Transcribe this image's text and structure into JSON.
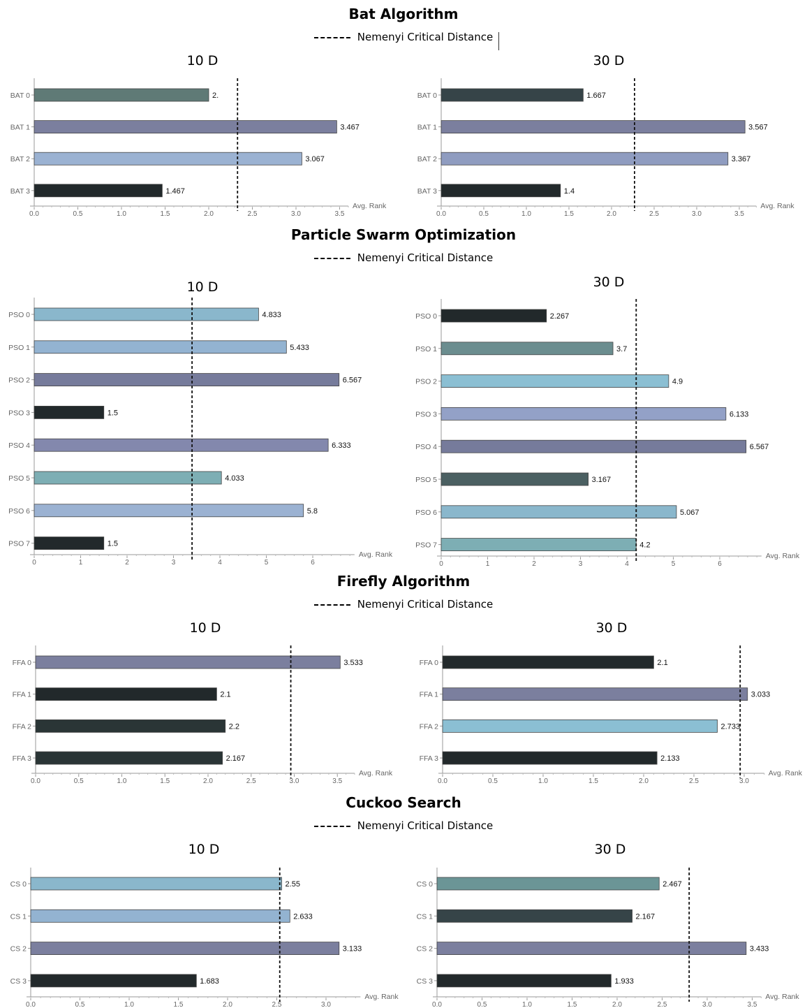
{
  "legend_label": "Nemenyi Critical Distance",
  "sections": [
    {
      "title": "Bat Algorithm"
    },
    {
      "title": "Particle Swarm Optimization"
    },
    {
      "title": "Firefly Algorithm"
    },
    {
      "title": "Cuckoo Search"
    }
  ],
  "chart_data": [
    {
      "type": "bar",
      "section": "Bat Algorithm",
      "title": "10 D",
      "xlabel": "Avg. Rank",
      "xlim": [
        0,
        3.6
      ],
      "ticks": [
        "0.0",
        "0.5",
        "1.0",
        "1.5",
        "2.0",
        "2.5",
        "3.0",
        "3.5"
      ],
      "categories": [
        "BAT 0",
        "BAT 1",
        "BAT 2",
        "BAT 3"
      ],
      "values": [
        2.0,
        3.467,
        3.067,
        1.467
      ],
      "labels": [
        "2.",
        "3.467",
        "3.067",
        "1.467"
      ],
      "colors": [
        "#5f7a76",
        "#7b7f9e",
        "#9bb2d2",
        "#22292b"
      ],
      "critical_distance": 2.33
    },
    {
      "type": "bar",
      "section": "Bat Algorithm",
      "title": "30 D",
      "xlabel": "Avg. Rank",
      "xlim": [
        0,
        3.7
      ],
      "ticks": [
        "0.0",
        "0.5",
        "1.0",
        "1.5",
        "2.0",
        "2.5",
        "3.0",
        "3.5"
      ],
      "categories": [
        "BAT 0",
        "BAT 1",
        "BAT 2",
        "BAT 3"
      ],
      "values": [
        1.667,
        3.567,
        3.367,
        1.4
      ],
      "labels": [
        "1.667",
        "3.567",
        "3.367",
        "1.4"
      ],
      "colors": [
        "#364448",
        "#7b7f9e",
        "#8f9cc0",
        "#22292b"
      ],
      "critical_distance": 2.27
    },
    {
      "type": "bar",
      "section": "Particle Swarm Optimization",
      "title": "10 D",
      "xlabel": "Avg. Rank",
      "xlim": [
        0,
        6.9
      ],
      "ticks": [
        "0",
        "1",
        "2",
        "3",
        "4",
        "5",
        "6"
      ],
      "categories": [
        "PSO 0",
        "PSO 1",
        "PSO 2",
        "PSO 3",
        "PSO 4",
        "PSO 5",
        "PSO 6",
        "PSO 7"
      ],
      "values": [
        4.833,
        5.433,
        6.567,
        1.5,
        6.333,
        4.033,
        5.8,
        1.5
      ],
      "labels": [
        "4.833",
        "5.433",
        "6.567",
        "1.5",
        "6.333",
        "4.033",
        "5.8",
        "1.5"
      ],
      "colors": [
        "#8ab7cc",
        "#93b3d1",
        "#767b9b",
        "#22292b",
        "#8388ad",
        "#7daeb4",
        "#9bb2d2",
        "#22292b"
      ],
      "critical_distance": 3.4
    },
    {
      "type": "bar",
      "section": "Particle Swarm Optimization",
      "title": "30 D",
      "xlabel": "Avg. Rank",
      "xlim": [
        0,
        6.9
      ],
      "ticks": [
        "0",
        "1",
        "2",
        "3",
        "4",
        "5",
        "6"
      ],
      "categories": [
        "PSO 0",
        "PSO 1",
        "PSO 2",
        "PSO 3",
        "PSO 4",
        "PSO 5",
        "PSO 6",
        "PSO 7"
      ],
      "values": [
        2.267,
        3.7,
        4.9,
        6.133,
        6.567,
        3.167,
        5.067,
        4.2
      ],
      "labels": [
        "2.267",
        "3.7",
        "4.9",
        "6.133",
        "6.567",
        "3.167",
        "5.067",
        "4.2"
      ],
      "colors": [
        "#22292b",
        "#6b8d8f",
        "#8bbfd3",
        "#93a1c7",
        "#767b9b",
        "#4b6062",
        "#8ab7cc",
        "#7daeb4"
      ],
      "critical_distance": 4.2
    },
    {
      "type": "bar",
      "section": "Firefly Algorithm",
      "title": "10 D",
      "xlabel": "Avg. Rank",
      "xlim": [
        0,
        3.7
      ],
      "ticks": [
        "0.0",
        "0.5",
        "1.0",
        "1.5",
        "2.0",
        "2.5",
        "3.0",
        "3.5"
      ],
      "categories": [
        "FFA 0",
        "FFA 1",
        "FFA 2",
        "FFA 3"
      ],
      "values": [
        3.533,
        2.1,
        2.2,
        2.167
      ],
      "labels": [
        "3.533",
        "2.1",
        "2.2",
        "2.167"
      ],
      "colors": [
        "#7b7f9e",
        "#22292b",
        "#2a3536",
        "#2a3536"
      ],
      "critical_distance": 2.96
    },
    {
      "type": "bar",
      "section": "Firefly Algorithm",
      "title": "30 D",
      "xlabel": "Avg. Rank",
      "xlim": [
        0,
        3.2
      ],
      "ticks": [
        "0.0",
        "0.5",
        "1.0",
        "1.5",
        "2.0",
        "2.5",
        "3.0"
      ],
      "categories": [
        "FFA 0",
        "FFA 1",
        "FFA 2",
        "FFA 3"
      ],
      "values": [
        2.1,
        3.033,
        2.733,
        2.133
      ],
      "labels": [
        "2.1",
        "3.033",
        "2.733",
        "2.133"
      ],
      "colors": [
        "#22292b",
        "#7b7f9e",
        "#8bbfd3",
        "#22292b"
      ],
      "critical_distance": 2.96
    },
    {
      "type": "bar",
      "section": "Cuckoo Search",
      "title": "10 D",
      "xlabel": "Avg. Rank",
      "xlim": [
        0,
        3.35
      ],
      "ticks": [
        "0.0",
        "0.5",
        "1.0",
        "1.5",
        "2.0",
        "2.5",
        "3.0"
      ],
      "categories": [
        "CS 0",
        "CS 1",
        "CS 2",
        "CS 3"
      ],
      "values": [
        2.55,
        2.633,
        3.133,
        1.683
      ],
      "labels": [
        "2.55",
        "2.633",
        "3.133",
        "1.683"
      ],
      "colors": [
        "#8ab7cc",
        "#93b3d1",
        "#7b7f9e",
        "#22292b"
      ],
      "critical_distance": 2.53
    },
    {
      "type": "bar",
      "section": "Cuckoo Search",
      "title": "30 D",
      "xlabel": "Avg. Rank",
      "xlim": [
        0,
        3.6
      ],
      "ticks": [
        "0.0",
        "0.5",
        "1.0",
        "1.5",
        "2.0",
        "2.5",
        "3.0",
        "3.5"
      ],
      "categories": [
        "CS 0",
        "CS 1",
        "CS 2",
        "CS 3"
      ],
      "values": [
        2.467,
        2.167,
        3.433,
        1.933
      ],
      "labels": [
        "2.467",
        "2.167",
        "3.433",
        "1.933"
      ],
      "colors": [
        "#6b9596",
        "#364448",
        "#7b7f9e",
        "#22292b"
      ],
      "critical_distance": 2.8
    }
  ]
}
